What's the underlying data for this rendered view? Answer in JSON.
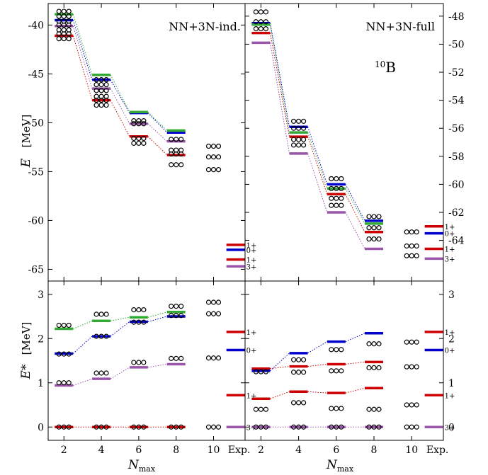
{
  "figure": {
    "xlabel": "N",
    "xlabel_sub": "max",
    "x_ticks": [
      "2",
      "4",
      "6",
      "8",
      "10",
      "Exp."
    ],
    "colors": {
      "red": "#cc0000",
      "blue": "#0000cc",
      "green": "#33aa33",
      "purple": "#9955aa"
    }
  },
  "chart_data": [
    {
      "id": "top-left",
      "type": "scatter",
      "panel_label": "NN+3N-ind.",
      "ylabel_var": "E",
      "ylabel_unit": "[MeV]",
      "ylim": [
        -66.2,
        -37.8
      ],
      "y_ticks": [
        "-40",
        "-45",
        "-50",
        "-55",
        "-60",
        "-65"
      ],
      "y_tick_values": [
        -40,
        -45,
        -50,
        -55,
        -60,
        -65
      ],
      "levels": [
        {
          "name": "1+",
          "color": "red",
          "values": [
            -41.1,
            -47.7,
            -51.4,
            -53.3
          ]
        },
        {
          "name": "0+",
          "color": "blue",
          "values": [
            -39.5,
            -45.6,
            -49.0,
            -51.0
          ]
        },
        {
          "name": "1+",
          "color": "green",
          "values": [
            -38.9,
            -45.1,
            -48.9,
            -50.8
          ]
        },
        {
          "name": "3+",
          "color": "purple",
          "values": [
            -40.1,
            -46.5,
            -50.1,
            -51.9
          ]
        }
      ],
      "circles": [
        {
          "x": "2",
          "values": [
            -38.6,
            -39.1,
            -39.6,
            -40.0,
            -40.5,
            -40.9,
            -41.4
          ]
        },
        {
          "x": "4",
          "values": [
            -45.6,
            -46.1,
            -46.7,
            -47.3,
            -47.7,
            -48.2
          ]
        },
        {
          "x": "6",
          "values": [
            -49.8,
            -50.1,
            -51.6,
            -52.1
          ]
        },
        {
          "x": "8",
          "values": [
            -51.7,
            -52.8,
            -53.2,
            -54.3
          ]
        },
        {
          "x": "10",
          "values": [
            -52.4,
            -53.5,
            -54.8
          ]
        }
      ],
      "exp": [
        {
          "label": "1+",
          "color": "red",
          "value": -62.5
        },
        {
          "label": "0+",
          "color": "blue",
          "value": -63.0
        },
        {
          "label": "1+",
          "color": "red",
          "value": -64.0
        },
        {
          "label": "3+",
          "color": "purple",
          "value": -64.7
        }
      ]
    },
    {
      "id": "top-right",
      "type": "scatter",
      "panel_label": "NN+3N-full",
      "nucleus_mass": "10",
      "nucleus_symbol": "B",
      "ylim": [
        -66.9,
        -47.1
      ],
      "y_ticks": [
        "-48",
        "-50",
        "-52",
        "-54",
        "-56",
        "-58",
        "-60",
        "-62",
        "-64"
      ],
      "y_tick_values": [
        -48,
        -50,
        -52,
        -54,
        -56,
        -58,
        -60,
        -62,
        -64
      ],
      "levels": [
        {
          "name": "1+",
          "color": "red",
          "values": [
            -49.2,
            -56.6,
            -60.7,
            -63.4
          ]
        },
        {
          "name": "0+",
          "color": "blue",
          "values": [
            -48.5,
            -55.9,
            -60.0,
            -62.6
          ]
        },
        {
          "name": "1+",
          "color": "green",
          "values": [
            -48.6,
            -56.3,
            -60.3,
            -62.8
          ]
        },
        {
          "name": "3+",
          "color": "purple",
          "values": [
            -49.9,
            -57.8,
            -62.0,
            -64.6
          ]
        }
      ],
      "circles": [
        {
          "x": "2",
          "values": [
            -47.7,
            -48.4,
            -48.9
          ]
        },
        {
          "x": "4",
          "values": [
            -55.5,
            -56.0,
            -56.8,
            -57.2
          ]
        },
        {
          "x": "6",
          "values": [
            -59.6,
            -60.3,
            -61.0,
            -61.5
          ]
        },
        {
          "x": "8",
          "values": [
            -62.3,
            -63.1,
            -63.9
          ]
        },
        {
          "x": "10",
          "values": [
            -63.4,
            -64.4,
            -65.1
          ]
        }
      ],
      "exp": [
        {
          "label": "1+",
          "color": "red",
          "value": -63.0
        },
        {
          "label": "0+",
          "color": "blue",
          "value": -63.5
        },
        {
          "label": "1+",
          "color": "red",
          "value": -64.6
        },
        {
          "label": "3+",
          "color": "purple",
          "value": -65.3
        }
      ]
    },
    {
      "id": "bottom-left",
      "type": "scatter",
      "ylabel_var": "E*",
      "ylabel_unit": "[MeV]",
      "ylim": [
        -0.3,
        3.3
      ],
      "y_ticks": [
        "0",
        "1",
        "2",
        "3"
      ],
      "y_tick_values": [
        0,
        1,
        2,
        3
      ],
      "levels": [
        {
          "name": "3+",
          "color": "purple",
          "values": [
            0.94,
            1.09,
            1.35,
            1.42
          ]
        },
        {
          "name": "1+",
          "color": "red",
          "values": [
            0.0,
            0.0,
            0.0,
            0.0
          ]
        },
        {
          "name": "0+",
          "color": "blue",
          "values": [
            1.66,
            2.05,
            2.38,
            2.5
          ]
        },
        {
          "name": "1+",
          "color": "green",
          "values": [
            2.22,
            2.4,
            2.48,
            2.6
          ]
        }
      ],
      "circles": [
        {
          "x": "2",
          "values": [
            0.0,
            1.0,
            1.65,
            2.3
          ]
        },
        {
          "x": "4",
          "values": [
            0.0,
            1.22,
            2.05,
            2.55
          ]
        },
        {
          "x": "6",
          "values": [
            0.0,
            1.46,
            2.37,
            2.65
          ]
        },
        {
          "x": "8",
          "values": [
            0.0,
            1.55,
            2.52,
            2.73
          ]
        },
        {
          "x": "10",
          "values": [
            0.0,
            1.56,
            2.56,
            2.82
          ]
        }
      ],
      "exp": [
        {
          "label": "1+",
          "color": "red",
          "value": 2.15
        },
        {
          "label": "0+",
          "color": "blue",
          "value": 1.74
        },
        {
          "label": "1+",
          "color": "red",
          "value": 0.72
        },
        {
          "label": "3+",
          "color": "purple",
          "value": 0.0
        }
      ]
    },
    {
      "id": "bottom-right",
      "type": "scatter",
      "ylim": [
        -0.3,
        3.3
      ],
      "y_ticks": [
        "0",
        "1",
        "2",
        "3"
      ],
      "y_tick_values": [
        0,
        1,
        2,
        3
      ],
      "levels": [
        {
          "name": "3+",
          "color": "purple",
          "values": [
            0.0,
            0.0,
            0.0,
            0.0
          ]
        },
        {
          "name": "1+",
          "color": "red",
          "values": [
            0.64,
            0.8,
            0.77,
            0.88
          ]
        },
        {
          "name": "1+",
          "color": "red",
          "values": [
            1.32,
            1.37,
            1.42,
            1.47
          ]
        },
        {
          "name": "0+",
          "color": "blue",
          "values": [
            1.27,
            1.67,
            1.93,
            2.12
          ]
        }
      ],
      "circles": [
        {
          "x": "2",
          "values": [
            0.0,
            0.4,
            1.25
          ]
        },
        {
          "x": "4",
          "values": [
            0.0,
            0.55,
            1.24,
            1.52
          ]
        },
        {
          "x": "6",
          "values": [
            0.0,
            0.42,
            1.27,
            1.75
          ]
        },
        {
          "x": "8",
          "values": [
            0.0,
            0.4,
            1.34,
            1.88
          ]
        },
        {
          "x": "10",
          "values": [
            0.0,
            0.5,
            1.36,
            1.92
          ]
        }
      ],
      "exp": [
        {
          "label": "1+",
          "color": "red",
          "value": 2.15
        },
        {
          "label": "0+",
          "color": "blue",
          "value": 1.74
        },
        {
          "label": "1+",
          "color": "red",
          "value": 0.72
        },
        {
          "label": "3+",
          "color": "purple",
          "value": 0.0
        }
      ]
    }
  ]
}
